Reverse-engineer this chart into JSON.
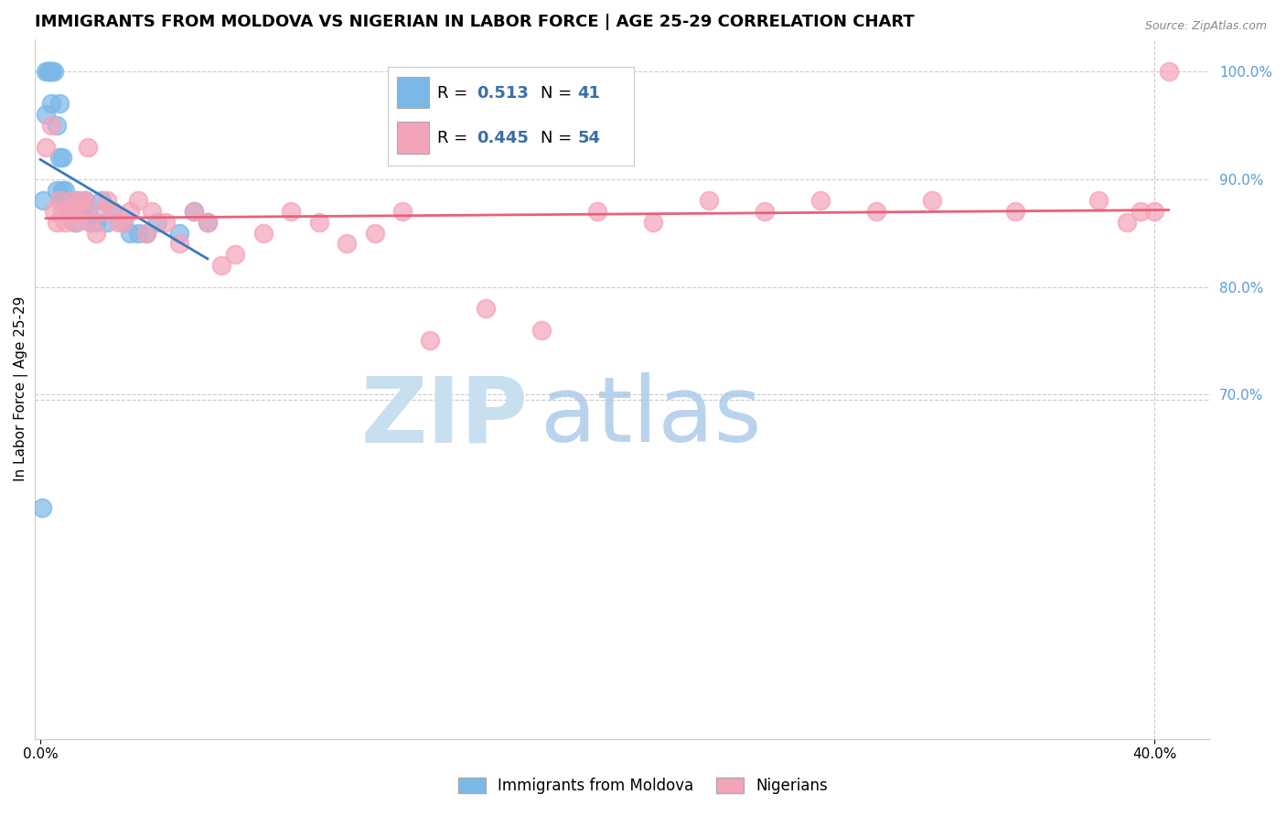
{
  "title": "IMMIGRANTS FROM MOLDOVA VS NIGERIAN IN LABOR FORCE | AGE 25-29 CORRELATION CHART",
  "source": "Source: ZipAtlas.com",
  "ylabel": "In Labor Force | Age 25-29",
  "xlim": [
    -0.002,
    0.42
  ],
  "ylim": [
    0.38,
    1.03
  ],
  "x_ticks": [
    0.0,
    0.4
  ],
  "x_tick_labels": [
    "0.0%",
    "40.0%"
  ],
  "y_ticks_right": [
    1.0,
    0.9,
    0.8,
    0.7
  ],
  "y_tick_labels_right": [
    "100.0%",
    "90.0%",
    "80.0%",
    "70.0%"
  ],
  "moldova_color": "#7ab8e8",
  "nigeria_color": "#f4a4b8",
  "moldova_line_color": "#3a7abf",
  "nigeria_line_color": "#e8607a",
  "moldova_x": [
    0.0005,
    0.001,
    0.002,
    0.002,
    0.003,
    0.003,
    0.004,
    0.004,
    0.004,
    0.005,
    0.006,
    0.006,
    0.007,
    0.007,
    0.008,
    0.008,
    0.008,
    0.009,
    0.009,
    0.01,
    0.01,
    0.011,
    0.012,
    0.013,
    0.014,
    0.015,
    0.016,
    0.017,
    0.018,
    0.02,
    0.022,
    0.024,
    0.026,
    0.03,
    0.032,
    0.035,
    0.038,
    0.042,
    0.05,
    0.055,
    0.06
  ],
  "moldova_y": [
    0.595,
    0.88,
    0.96,
    1.0,
    1.0,
    1.0,
    0.97,
    1.0,
    1.0,
    1.0,
    0.89,
    0.95,
    0.92,
    0.97,
    0.88,
    0.89,
    0.92,
    0.89,
    0.88,
    0.87,
    0.88,
    0.87,
    0.86,
    0.88,
    0.87,
    0.87,
    0.88,
    0.87,
    0.86,
    0.86,
    0.88,
    0.86,
    0.87,
    0.86,
    0.85,
    0.85,
    0.85,
    0.86,
    0.85,
    0.87,
    0.86
  ],
  "nigeria_x": [
    0.002,
    0.004,
    0.005,
    0.006,
    0.007,
    0.008,
    0.009,
    0.01,
    0.011,
    0.012,
    0.013,
    0.014,
    0.015,
    0.016,
    0.017,
    0.018,
    0.02,
    0.022,
    0.024,
    0.026,
    0.028,
    0.03,
    0.032,
    0.035,
    0.038,
    0.04,
    0.045,
    0.05,
    0.055,
    0.06,
    0.065,
    0.07,
    0.08,
    0.09,
    0.1,
    0.11,
    0.12,
    0.13,
    0.14,
    0.16,
    0.18,
    0.2,
    0.22,
    0.24,
    0.26,
    0.28,
    0.3,
    0.32,
    0.35,
    0.38,
    0.39,
    0.395,
    0.4,
    0.405
  ],
  "nigeria_y": [
    0.93,
    0.95,
    0.87,
    0.86,
    0.88,
    0.87,
    0.86,
    0.87,
    0.88,
    0.87,
    0.86,
    0.88,
    0.87,
    0.88,
    0.93,
    0.86,
    0.85,
    0.87,
    0.88,
    0.87,
    0.86,
    0.86,
    0.87,
    0.88,
    0.85,
    0.87,
    0.86,
    0.84,
    0.87,
    0.86,
    0.82,
    0.83,
    0.85,
    0.87,
    0.86,
    0.84,
    0.85,
    0.87,
    0.75,
    0.78,
    0.76,
    0.87,
    0.86,
    0.88,
    0.87,
    0.88,
    0.87,
    0.88,
    0.87,
    0.88,
    0.86,
    0.87,
    0.87,
    1.0
  ],
  "background_color": "#ffffff",
  "grid_color": "#cccccc",
  "title_fontsize": 13,
  "axis_label_fontsize": 11,
  "tick_fontsize": 11,
  "legend_fontsize": 13
}
